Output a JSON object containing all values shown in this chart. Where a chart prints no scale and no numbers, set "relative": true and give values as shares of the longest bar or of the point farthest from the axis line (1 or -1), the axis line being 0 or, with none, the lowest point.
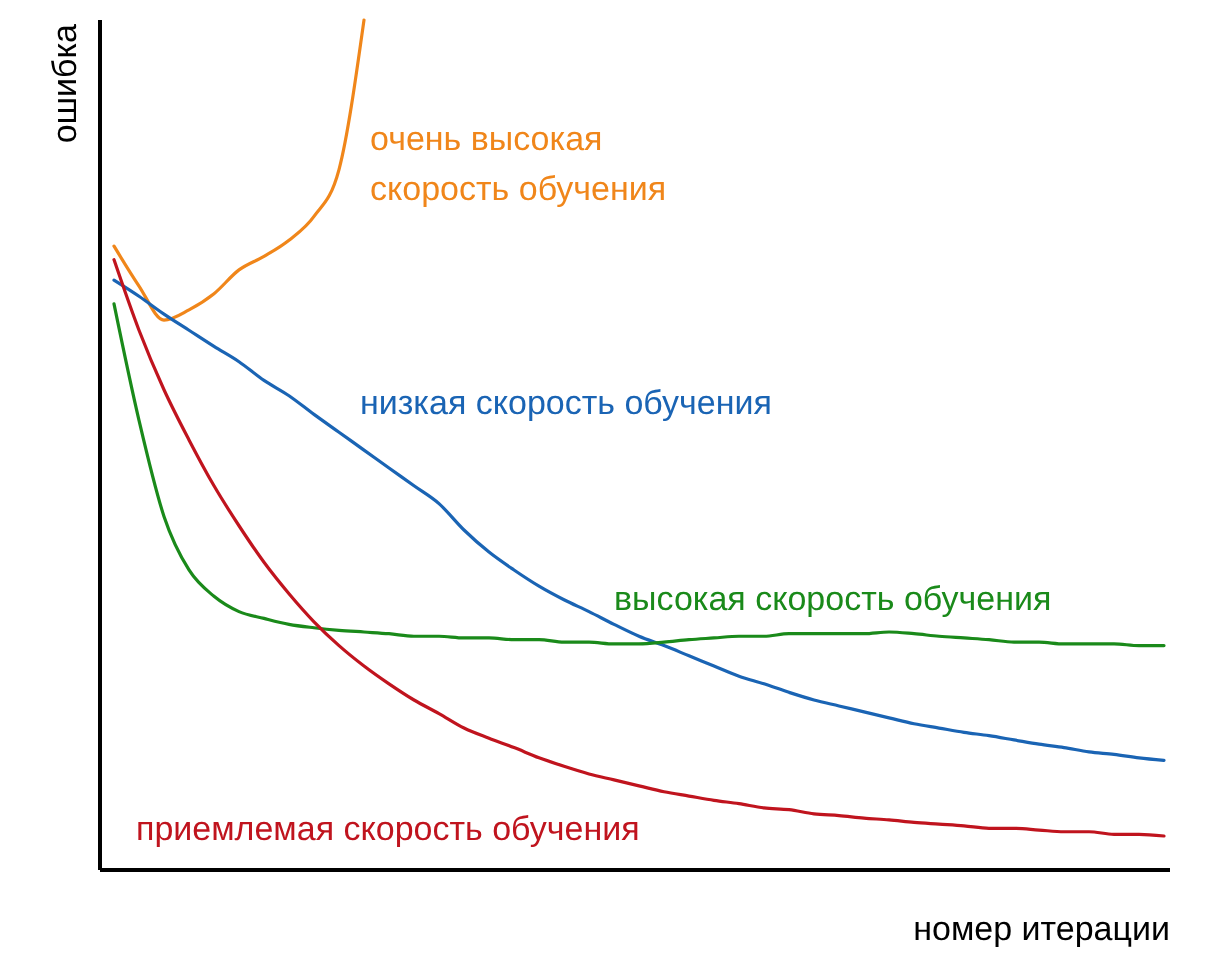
{
  "chart_data": {
    "type": "line",
    "relative": true,
    "xlabel": "номер итерации",
    "ylabel": "ошибка",
    "legend": false,
    "categories": [
      null,
      null,
      null,
      null,
      null,
      null,
      null,
      null,
      null,
      null,
      null,
      null,
      null,
      null,
      null,
      null,
      null,
      null,
      null,
      null,
      null,
      null,
      null,
      null,
      null,
      null,
      null,
      null,
      null,
      null,
      null,
      null,
      null,
      null,
      null,
      null,
      null,
      null,
      null,
      null,
      null,
      null,
      null
    ],
    "series": [
      {
        "name": "очень высокая скорость обучения",
        "color": "#f0861a",
        "values": [
          0.734,
          0.687,
          0.647,
          0.659,
          0.678,
          0.706,
          0.722,
          0.741,
          0.769,
          0.824,
          1,
          null,
          null,
          null,
          null,
          null,
          null,
          null,
          null,
          null,
          null,
          null,
          null,
          null,
          null,
          null,
          null,
          null,
          null,
          null,
          null,
          null,
          null,
          null,
          null,
          null,
          null,
          null,
          null,
          null,
          null,
          null,
          null
        ]
      },
      {
        "name": "низкая скорость обучения",
        "color": "#1a64b4",
        "values": [
          0.694,
          0.675,
          0.654,
          0.635,
          0.616,
          0.598,
          0.576,
          0.558,
          0.536,
          0.515,
          0.494,
          0.473,
          0.452,
          0.431,
          0.4,
          0.374,
          0.353,
          0.334,
          0.318,
          0.304,
          0.289,
          0.275,
          0.264,
          0.252,
          0.24,
          0.228,
          0.219,
          0.209,
          0.2,
          0.193,
          0.186,
          0.179,
          0.172,
          0.167,
          0.162,
          0.158,
          0.153,
          0.148,
          0.144,
          0.139,
          0.136,
          0.132,
          0.129
        ]
      },
      {
        "name": "высокая скорость обучения",
        "color": "#1a8a1a",
        "values": [
          0.666,
          0.529,
          0.416,
          0.353,
          0.322,
          0.304,
          0.296,
          0.289,
          0.285,
          0.282,
          0.28,
          0.278,
          0.275,
          0.275,
          0.273,
          0.273,
          0.271,
          0.271,
          0.268,
          0.268,
          0.266,
          0.266,
          0.268,
          0.271,
          0.273,
          0.275,
          0.275,
          0.278,
          0.278,
          0.278,
          0.278,
          0.28,
          0.278,
          0.275,
          0.273,
          0.271,
          0.268,
          0.268,
          0.266,
          0.266,
          0.266,
          0.264,
          0.264
        ]
      },
      {
        "name": "приемлемая скорость обучения",
        "color": "#c0141e",
        "values": [
          0.718,
          0.635,
          0.565,
          0.506,
          0.452,
          0.405,
          0.362,
          0.325,
          0.292,
          0.264,
          0.24,
          0.219,
          0.2,
          0.184,
          0.167,
          0.155,
          0.144,
          0.132,
          0.122,
          0.113,
          0.106,
          0.099,
          0.092,
          0.087,
          0.082,
          0.078,
          0.073,
          0.071,
          0.066,
          0.064,
          0.061,
          0.059,
          0.056,
          0.054,
          0.052,
          0.049,
          0.049,
          0.047,
          0.045,
          0.045,
          0.042,
          0.042,
          0.04
        ]
      }
    ]
  }
}
